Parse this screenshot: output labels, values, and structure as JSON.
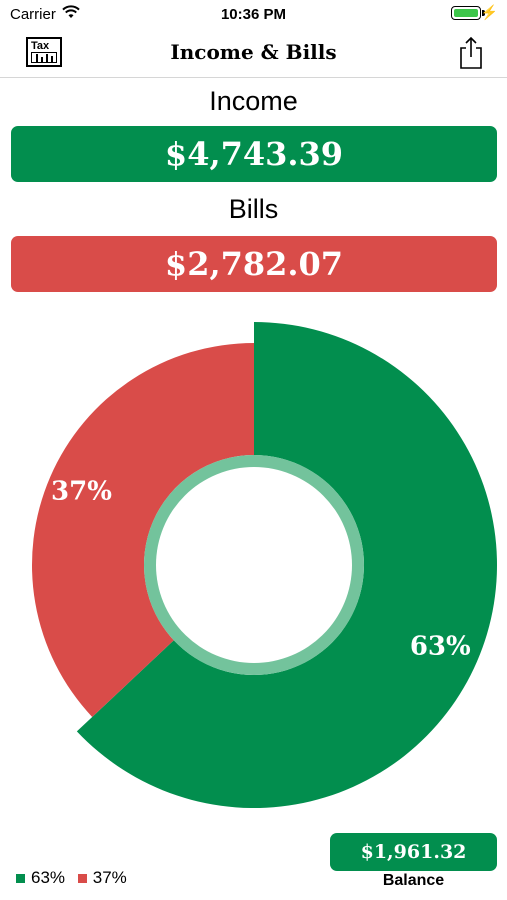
{
  "status_bar": {
    "carrier": "Carrier",
    "time": "10:36 PM"
  },
  "nav": {
    "title": "Income & Bills",
    "tax_icon_text": "Tax"
  },
  "income": {
    "label": "Income",
    "amount": "$4,743.39"
  },
  "bills": {
    "label": "Bills",
    "amount": "$2,782.07"
  },
  "colors": {
    "income": "#028e4e",
    "bills": "#d94c49",
    "inner_ring": "#73c39c"
  },
  "chart_data": {
    "type": "pie",
    "slices": [
      {
        "label": "63%",
        "value": 63,
        "color": "#028e4e"
      },
      {
        "label": "37%",
        "value": 37,
        "color": "#d94c49"
      }
    ]
  },
  "legend": [
    {
      "label": "63%",
      "color": "#028e4e"
    },
    {
      "label": "37%",
      "color": "#d94c49"
    }
  ],
  "balance": {
    "amount": "$1,961.32",
    "label": "Balance"
  }
}
